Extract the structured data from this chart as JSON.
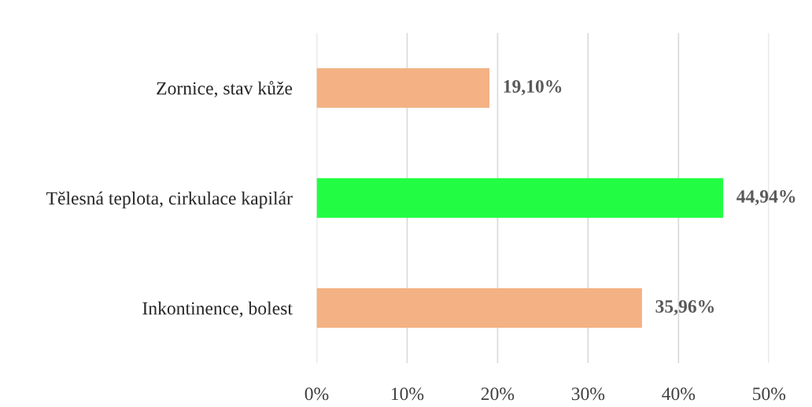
{
  "chart_data": {
    "type": "bar",
    "orientation": "horizontal",
    "categories": [
      "Zornice, stav kůže",
      "Tělesná teplota, cirkulace kapilár",
      "Inkontinence, bolest"
    ],
    "values": [
      19.1,
      44.94,
      35.96
    ],
    "colors": [
      "#f4b183",
      "#22fd44",
      "#f4b183"
    ],
    "value_labels": [
      "19,10%",
      "44,94%",
      "35,96%"
    ],
    "xlim": [
      0,
      50
    ],
    "xticks": [
      {
        "value": 0,
        "label": "0%"
      },
      {
        "value": 10,
        "label": "10%"
      },
      {
        "value": 20,
        "label": "20%"
      },
      {
        "value": 30,
        "label": "30%"
      },
      {
        "value": 40,
        "label": "40%"
      },
      {
        "value": 50,
        "label": "50%"
      }
    ],
    "grid": "x"
  }
}
